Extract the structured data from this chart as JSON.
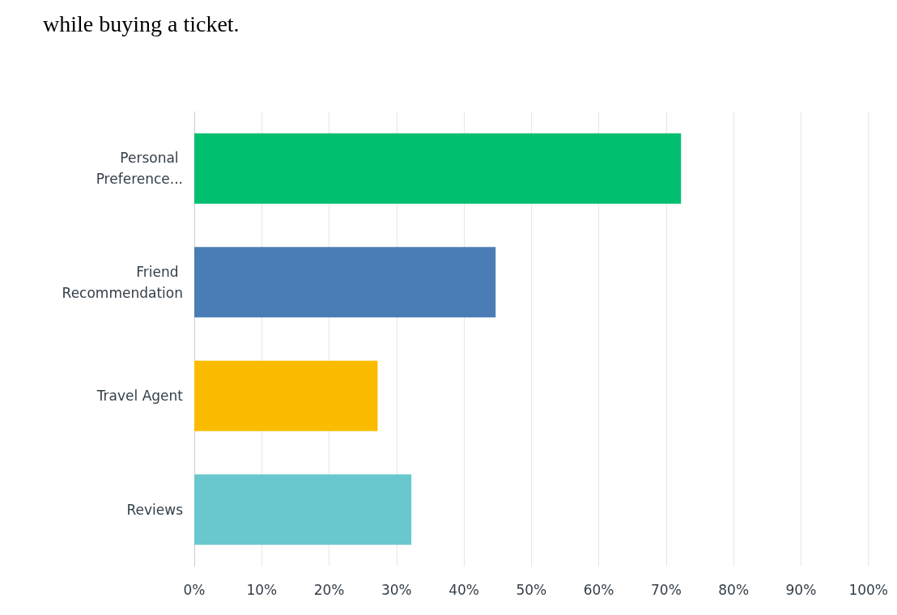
{
  "chart_data": {
    "type": "bar",
    "orientation": "horizontal",
    "title": "while buying a ticket.",
    "categories": [
      "Personal Preference...",
      "Friend Recommendation",
      "Travel Agent",
      "Reviews"
    ],
    "values": [
      72.2,
      44.7,
      27.2,
      32.2
    ],
    "colors": [
      "#00bf6f",
      "#4a7db5",
      "#fbbc00",
      "#68c8cd"
    ],
    "xlim": [
      0,
      100
    ],
    "xticks": [
      {
        "value": 0,
        "label": "0%"
      },
      {
        "value": 10,
        "label": "10%"
      },
      {
        "value": 20,
        "label": "20%"
      },
      {
        "value": 30,
        "label": "30%"
      },
      {
        "value": 40,
        "label": "40%"
      },
      {
        "value": 50,
        "label": "50%"
      },
      {
        "value": 60,
        "label": "60%"
      },
      {
        "value": 70,
        "label": "70%"
      },
      {
        "value": 80,
        "label": "80%"
      },
      {
        "value": 90,
        "label": "90%"
      },
      {
        "value": 100,
        "label": "100%"
      }
    ],
    "grid": "x"
  }
}
